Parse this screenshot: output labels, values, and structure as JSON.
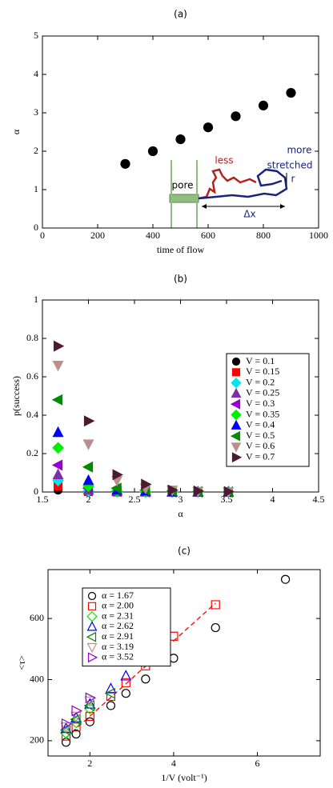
{
  "chart_data": [
    {
      "type": "scatter",
      "title": "(a)",
      "xlabel": "time of flow",
      "ylabel": "α",
      "xlim": [
        0,
        1000
      ],
      "xticks": [
        0,
        200,
        400,
        600,
        800,
        1000
      ],
      "ylim": [
        0,
        5
      ],
      "yticks": [
        0,
        1,
        2,
        3,
        4,
        5
      ],
      "series": [
        {
          "color": "#000000",
          "marker": "circle",
          "filled": true,
          "x": [
            300,
            400,
            500,
            600,
            700,
            800,
            900
          ],
          "values": [
            1.67,
            2.0,
            2.31,
            2.62,
            2.91,
            3.19,
            3.52
          ]
        }
      ],
      "annotations": [
        "pore",
        "less",
        "more",
        "stretched",
        "r",
        "Δx"
      ]
    },
    {
      "type": "scatter",
      "title": "(b)",
      "xlabel": "α",
      "ylabel": "p(success)",
      "xlim": [
        1.5,
        4.5
      ],
      "xticks": [
        1.5,
        2,
        2.5,
        3,
        3.5,
        4,
        4.5
      ],
      "ylim": [
        0,
        1
      ],
      "yticks": [
        0,
        0.2,
        0.4,
        0.6,
        0.8,
        1
      ],
      "legend": "right",
      "series": [
        {
          "name": "V = 0.1",
          "color": "#000000",
          "marker": "circle",
          "filled": true,
          "x": [
            1.67,
            2.0,
            2.31,
            2.62,
            2.91,
            3.19,
            3.52
          ],
          "values": [
            0.01,
            0,
            0,
            0,
            0,
            0,
            0
          ]
        },
        {
          "name": "V = 0.15",
          "color": "#ff0000",
          "marker": "square",
          "filled": true,
          "x": [
            1.67,
            2.0,
            2.31,
            2.62,
            2.91,
            3.19,
            3.52
          ],
          "values": [
            0.03,
            0.002,
            0,
            0,
            0,
            0,
            0
          ]
        },
        {
          "name": "V = 0.2",
          "color": "#00e5ee",
          "marker": "diamond",
          "filled": true,
          "x": [
            1.67,
            2.0,
            2.31,
            2.62,
            2.91,
            3.19,
            3.52
          ],
          "values": [
            0.06,
            0.005,
            0,
            0,
            0,
            0,
            0
          ]
        },
        {
          "name": "V = 0.25",
          "color": "#7b2fa8",
          "marker": "up",
          "filled": true,
          "x": [
            1.67,
            2.0,
            2.31,
            2.62,
            2.91,
            3.19,
            3.52
          ],
          "values": [
            0.09,
            0.01,
            0.002,
            0,
            0,
            0,
            0
          ]
        },
        {
          "name": "V = 0.3",
          "color": "#9400d3",
          "marker": "left",
          "filled": true,
          "x": [
            1.67,
            2.0,
            2.31,
            2.62,
            2.91,
            3.19,
            3.52
          ],
          "values": [
            0.14,
            0.02,
            0.003,
            0,
            0,
            0,
            0
          ]
        },
        {
          "name": "V = 0.35",
          "color": "#00ee00",
          "marker": "diamond",
          "filled": true,
          "x": [
            1.67,
            2.0,
            2.31,
            2.62,
            2.91,
            3.19,
            3.52
          ],
          "values": [
            0.23,
            0.03,
            0.005,
            0.001,
            0,
            0,
            0
          ]
        },
        {
          "name": "V = 0.4",
          "color": "#0000ff",
          "marker": "up",
          "filled": true,
          "x": [
            1.67,
            2.0,
            2.31,
            2.62,
            2.91,
            3.19,
            3.52
          ],
          "values": [
            0.31,
            0.06,
            0.01,
            0.005,
            0,
            0,
            0
          ]
        },
        {
          "name": "V = 0.5",
          "color": "#008b00",
          "marker": "left",
          "filled": true,
          "x": [
            1.67,
            2.0,
            2.31,
            2.62,
            2.91,
            3.19,
            3.52
          ],
          "values": [
            0.48,
            0.13,
            0.02,
            0.01,
            0.005,
            0.002,
            0
          ]
        },
        {
          "name": "V = 0.6",
          "color": "#bc8f8f",
          "marker": "down",
          "filled": true,
          "x": [
            1.67,
            2.0,
            2.31,
            2.62,
            2.91,
            3.19,
            3.52
          ],
          "values": [
            0.66,
            0.25,
            0.06,
            0.02,
            0.01,
            0.003,
            0.001
          ]
        },
        {
          "name": "V = 0.7",
          "color": "#4d1a33",
          "marker": "right",
          "filled": true,
          "x": [
            1.67,
            2.0,
            2.31,
            2.62,
            2.91,
            3.19,
            3.52
          ],
          "values": [
            0.76,
            0.37,
            0.09,
            0.04,
            0.01,
            0.005,
            0.002
          ]
        }
      ]
    },
    {
      "type": "scatter",
      "title": "(c)",
      "xlabel": "1/V (volt⁻¹)",
      "ylabel": "<τ>",
      "xlim": [
        1,
        7.5
      ],
      "xticks": [
        2,
        4,
        6
      ],
      "ylim": [
        150,
        760
      ],
      "yticks": [
        200,
        400,
        600
      ],
      "legend": "upper left",
      "series": [
        {
          "name": "α = 1.67",
          "color": "#000000",
          "marker": "circle",
          "filled": false,
          "x": [
            1.43,
            1.67,
            2.0,
            2.5,
            2.86,
            3.33,
            4.0,
            5.0,
            6.67
          ],
          "values": [
            195,
            222,
            262,
            315,
            355,
            402,
            470,
            570,
            728
          ]
        },
        {
          "name": "α = 2.00",
          "color": "#ff0000",
          "marker": "square",
          "filled": false,
          "x": [
            1.43,
            1.67,
            2.0,
            2.5,
            2.86,
            3.33,
            4.0,
            5.0
          ],
          "values": [
            215,
            245,
            280,
            345,
            390,
            445,
            542,
            645
          ]
        },
        {
          "name": "α = 2.31",
          "color": "#00ee00",
          "marker": "diamond",
          "filled": false,
          "x": [
            1.43,
            1.67,
            2.0
          ],
          "values": [
            225,
            260,
            305
          ]
        },
        {
          "name": "α = 2.62",
          "color": "#0000ff",
          "marker": "up",
          "filled": false,
          "x": [
            1.43,
            1.67,
            2.0,
            2.5,
            2.86
          ],
          "values": [
            240,
            275,
            320,
            370,
            412
          ]
        },
        {
          "name": "α = 2.91",
          "color": "#008b00",
          "marker": "left",
          "filled": false,
          "x": [
            1.43,
            1.67,
            2.0,
            2.5
          ],
          "values": [
            235,
            270,
            315,
            355
          ]
        },
        {
          "name": "α = 3.19",
          "color": "#bc8f8f",
          "marker": "down",
          "filled": false,
          "x": [
            1.43,
            1.67,
            2.0
          ],
          "values": [
            245,
            280,
            330
          ]
        },
        {
          "name": "α = 3.52",
          "color": "#9400d3",
          "marker": "right",
          "filled": false,
          "x": [
            1.43,
            1.67,
            2.0
          ],
          "values": [
            255,
            298,
            340
          ]
        }
      ],
      "fit_line": {
        "color": "#ff0000",
        "x": [
          1.43,
          5.0
        ],
        "values": [
          210,
          650
        ]
      }
    }
  ]
}
